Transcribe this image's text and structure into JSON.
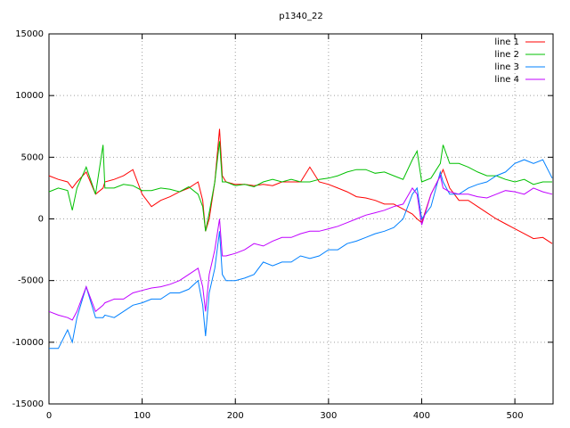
{
  "chart_data": {
    "type": "line",
    "title": "p1340_22",
    "x": [
      0,
      10,
      20,
      25,
      30,
      40,
      50,
      58,
      60,
      70,
      80,
      90,
      100,
      110,
      120,
      130,
      140,
      150,
      160,
      165,
      168,
      172,
      178,
      183,
      186,
      190,
      200,
      210,
      220,
      230,
      240,
      250,
      260,
      270,
      280,
      290,
      300,
      310,
      320,
      330,
      340,
      350,
      360,
      370,
      380,
      390,
      395,
      400,
      410,
      420,
      423,
      430,
      440,
      450,
      460,
      470,
      480,
      490,
      500,
      510,
      520,
      530,
      540
    ],
    "series": [
      {
        "name": "line 1",
        "color": "#ff0000",
        "values": [
          3500,
          3200,
          3000,
          2500,
          3000,
          3800,
          2000,
          2500,
          3000,
          3200,
          3500,
          4000,
          2000,
          1000,
          1500,
          1800,
          2200,
          2500,
          3000,
          1500,
          -1000,
          0,
          3000,
          7300,
          3500,
          3000,
          2800,
          2800,
          2700,
          2800,
          2700,
          3000,
          3000,
          3000,
          4200,
          3000,
          2800,
          2500,
          2200,
          1800,
          1700,
          1500,
          1200,
          1200,
          800,
          400,
          0,
          -300,
          2000,
          3500,
          4000,
          2500,
          1500,
          1500,
          1000,
          500,
          0,
          -400,
          -800,
          -1200,
          -1600,
          -1500,
          -2000
        ]
      },
      {
        "name": "line 2",
        "color": "#00c000",
        "values": [
          2200,
          2500,
          2300,
          700,
          2500,
          4200,
          2000,
          6000,
          2500,
          2500,
          2800,
          2700,
          2300,
          2300,
          2500,
          2400,
          2200,
          2600,
          2000,
          1000,
          -1000,
          500,
          3000,
          6300,
          3000,
          3000,
          2700,
          2800,
          2600,
          3000,
          3200,
          3000,
          3200,
          3000,
          3000,
          3200,
          3300,
          3500,
          3800,
          4000,
          4000,
          3700,
          3800,
          3500,
          3200,
          4800,
          5500,
          3000,
          3300,
          4500,
          6000,
          4500,
          4500,
          4200,
          3800,
          3500,
          3500,
          3200,
          3000,
          3200,
          2800,
          3000,
          3000
        ]
      },
      {
        "name": "line 3",
        "color": "#0080ff",
        "values": [
          -10500,
          -10500,
          -9000,
          -10000,
          -8000,
          -5500,
          -8000,
          -8000,
          -7800,
          -8000,
          -7500,
          -7000,
          -6800,
          -6500,
          -6500,
          -6000,
          -6000,
          -5700,
          -5000,
          -7000,
          -9500,
          -6000,
          -4000,
          -1000,
          -4500,
          -5000,
          -5000,
          -4800,
          -4500,
          -3500,
          -3800,
          -3500,
          -3500,
          -3000,
          -3200,
          -3000,
          -2500,
          -2500,
          -2000,
          -1800,
          -1500,
          -1200,
          -1000,
          -700,
          0,
          2000,
          2500,
          0,
          1000,
          3800,
          3000,
          2000,
          2000,
          2500,
          2800,
          3000,
          3500,
          3800,
          4500,
          4800,
          4500,
          4800,
          3300
        ]
      },
      {
        "name": "line 4",
        "color": "#c000ff",
        "values": [
          -7500,
          -7800,
          -8000,
          -8200,
          -7500,
          -5500,
          -7500,
          -7000,
          -6800,
          -6500,
          -6500,
          -6000,
          -5800,
          -5600,
          -5500,
          -5300,
          -5000,
          -4500,
          -4000,
          -5500,
          -7500,
          -4500,
          -2500,
          0,
          -3000,
          -3000,
          -2800,
          -2500,
          -2000,
          -2200,
          -1800,
          -1500,
          -1500,
          -1200,
          -1000,
          -1000,
          -800,
          -600,
          -300,
          0,
          300,
          500,
          700,
          1000,
          1200,
          2500,
          2000,
          -500,
          2000,
          3500,
          2500,
          2200,
          2000,
          2000,
          1800,
          1700,
          2000,
          2300,
          2200,
          2000,
          2500,
          2200,
          2000
        ]
      }
    ],
    "xlim": [
      0,
      541
    ],
    "xticks": [
      0,
      100,
      200,
      300,
      400,
      500
    ],
    "ylim": [
      -15000,
      15000
    ],
    "yticks": [
      -15000,
      -10000,
      -5000,
      0,
      5000,
      10000,
      15000
    ],
    "grid": true,
    "legend": "top-right"
  }
}
